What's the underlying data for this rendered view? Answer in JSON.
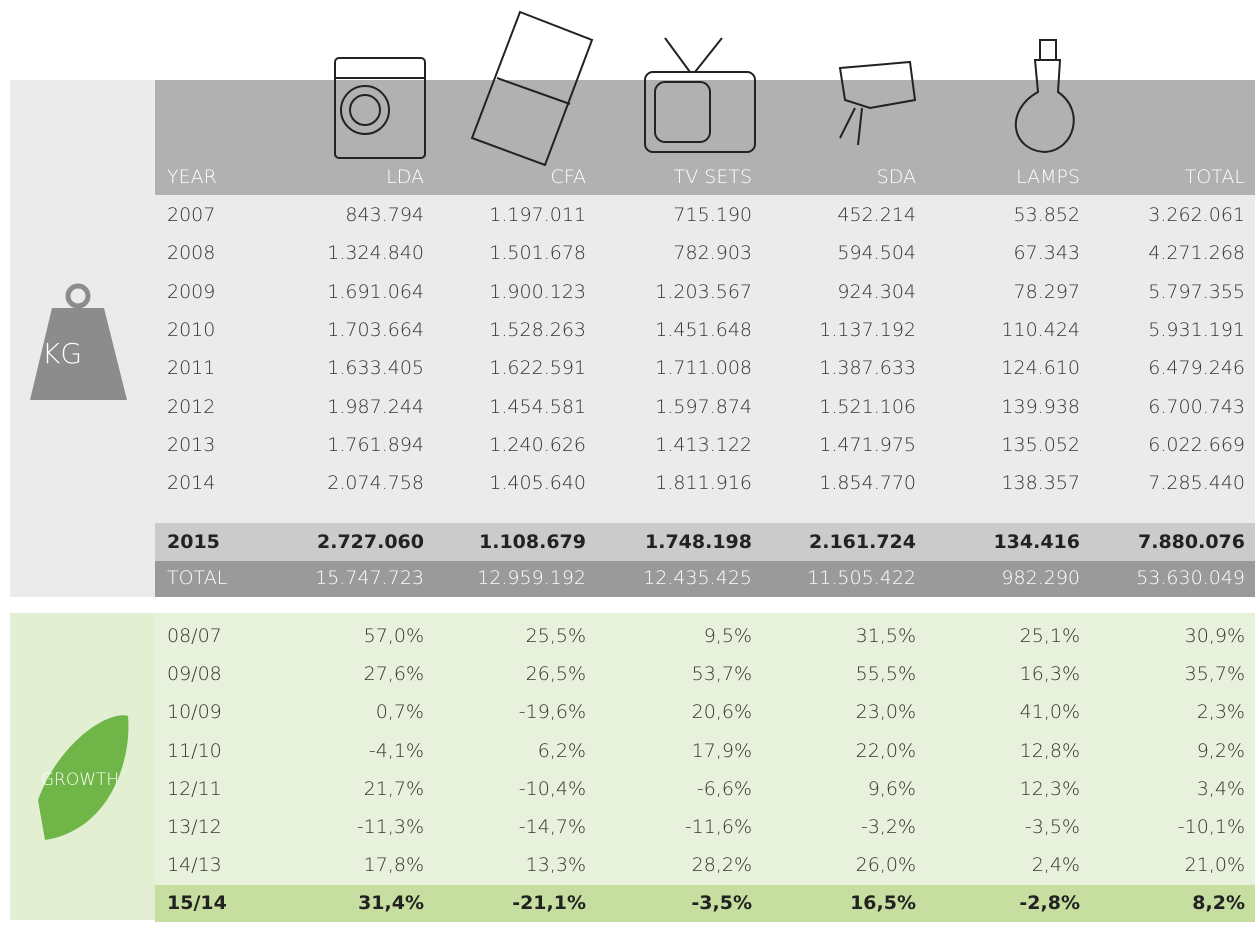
{
  "weight_label": "KG",
  "growth_label": "GROWTH",
  "table": {
    "columns": [
      "YEAR",
      "LDA",
      "CFA",
      "TV SETS",
      "SDA",
      "LAMPS",
      "TOTAL"
    ],
    "rows": [
      [
        "2007",
        "843.794",
        "1.197.011",
        "715.190",
        "452.214",
        "53.852",
        "3.262.061"
      ],
      [
        "2008",
        "1.324.840",
        "1.501.678",
        "782.903",
        "594.504",
        "67.343",
        "4.271.268"
      ],
      [
        "2009",
        "1.691.064",
        "1.900.123",
        "1.203.567",
        "924.304",
        "78.297",
        "5.797.355"
      ],
      [
        "2010",
        "1.703.664",
        "1.528.263",
        "1.451.648",
        "1.137.192",
        "110.424",
        "5.931.191"
      ],
      [
        "2011",
        "1.633.405",
        "1.622.591",
        "1.711.008",
        "1.387.633",
        "124.610",
        "6.479.246"
      ],
      [
        "2012",
        "1.987.244",
        "1.454.581",
        "1.597.874",
        "1.521.106",
        "139.938",
        "6.700.743"
      ],
      [
        "2013",
        "1.761.894",
        "1.240.626",
        "1.413.122",
        "1.471.975",
        "135.052",
        "6.022.669"
      ],
      [
        "2014",
        "2.074.758",
        "1.405.640",
        "1.811.916",
        "1.854.770",
        "138.357",
        "7.285.440"
      ],
      [
        "2015",
        "2.727.060",
        "1.108.679",
        "1.748.198",
        "2.161.724",
        "134.416",
        "7.880.076"
      ]
    ],
    "total": [
      "TOTAL",
      "15.747.723",
      "12.959.192",
      "12.435.425",
      "11.505.422",
      "982.290",
      "53.630.049"
    ]
  },
  "growth": {
    "rows": [
      [
        "08/07",
        "57,0%",
        "25,5%",
        "9,5%",
        "31,5%",
        "25,1%",
        "30,9%"
      ],
      [
        "09/08",
        "27,6%",
        "26,5%",
        "53,7%",
        "55,5%",
        "16,3%",
        "35,7%"
      ],
      [
        "10/09",
        "0,7%",
        "-19,6%",
        "20,6%",
        "23,0%",
        "41,0%",
        "2,3%"
      ],
      [
        "11/10",
        "-4,1%",
        "6,2%",
        "17,9%",
        "22,0%",
        "12,8%",
        "9,2%"
      ],
      [
        "12/11",
        "21,7%",
        "-10,4%",
        "-6,6%",
        "9,6%",
        "12,3%",
        "3,4%"
      ],
      [
        "13/12",
        "-11,3%",
        "-14,7%",
        "-11,6%",
        "-3,2%",
        "-3,5%",
        "-10,1%"
      ],
      [
        "14/13",
        "17,8%",
        "13,3%",
        "28,2%",
        "26,0%",
        "2,4%",
        "21,0%"
      ],
      [
        "15/14",
        "31,4%",
        "-21,1%",
        "-3,5%",
        "16,5%",
        "-2,8%",
        "8,2%"
      ]
    ]
  }
}
